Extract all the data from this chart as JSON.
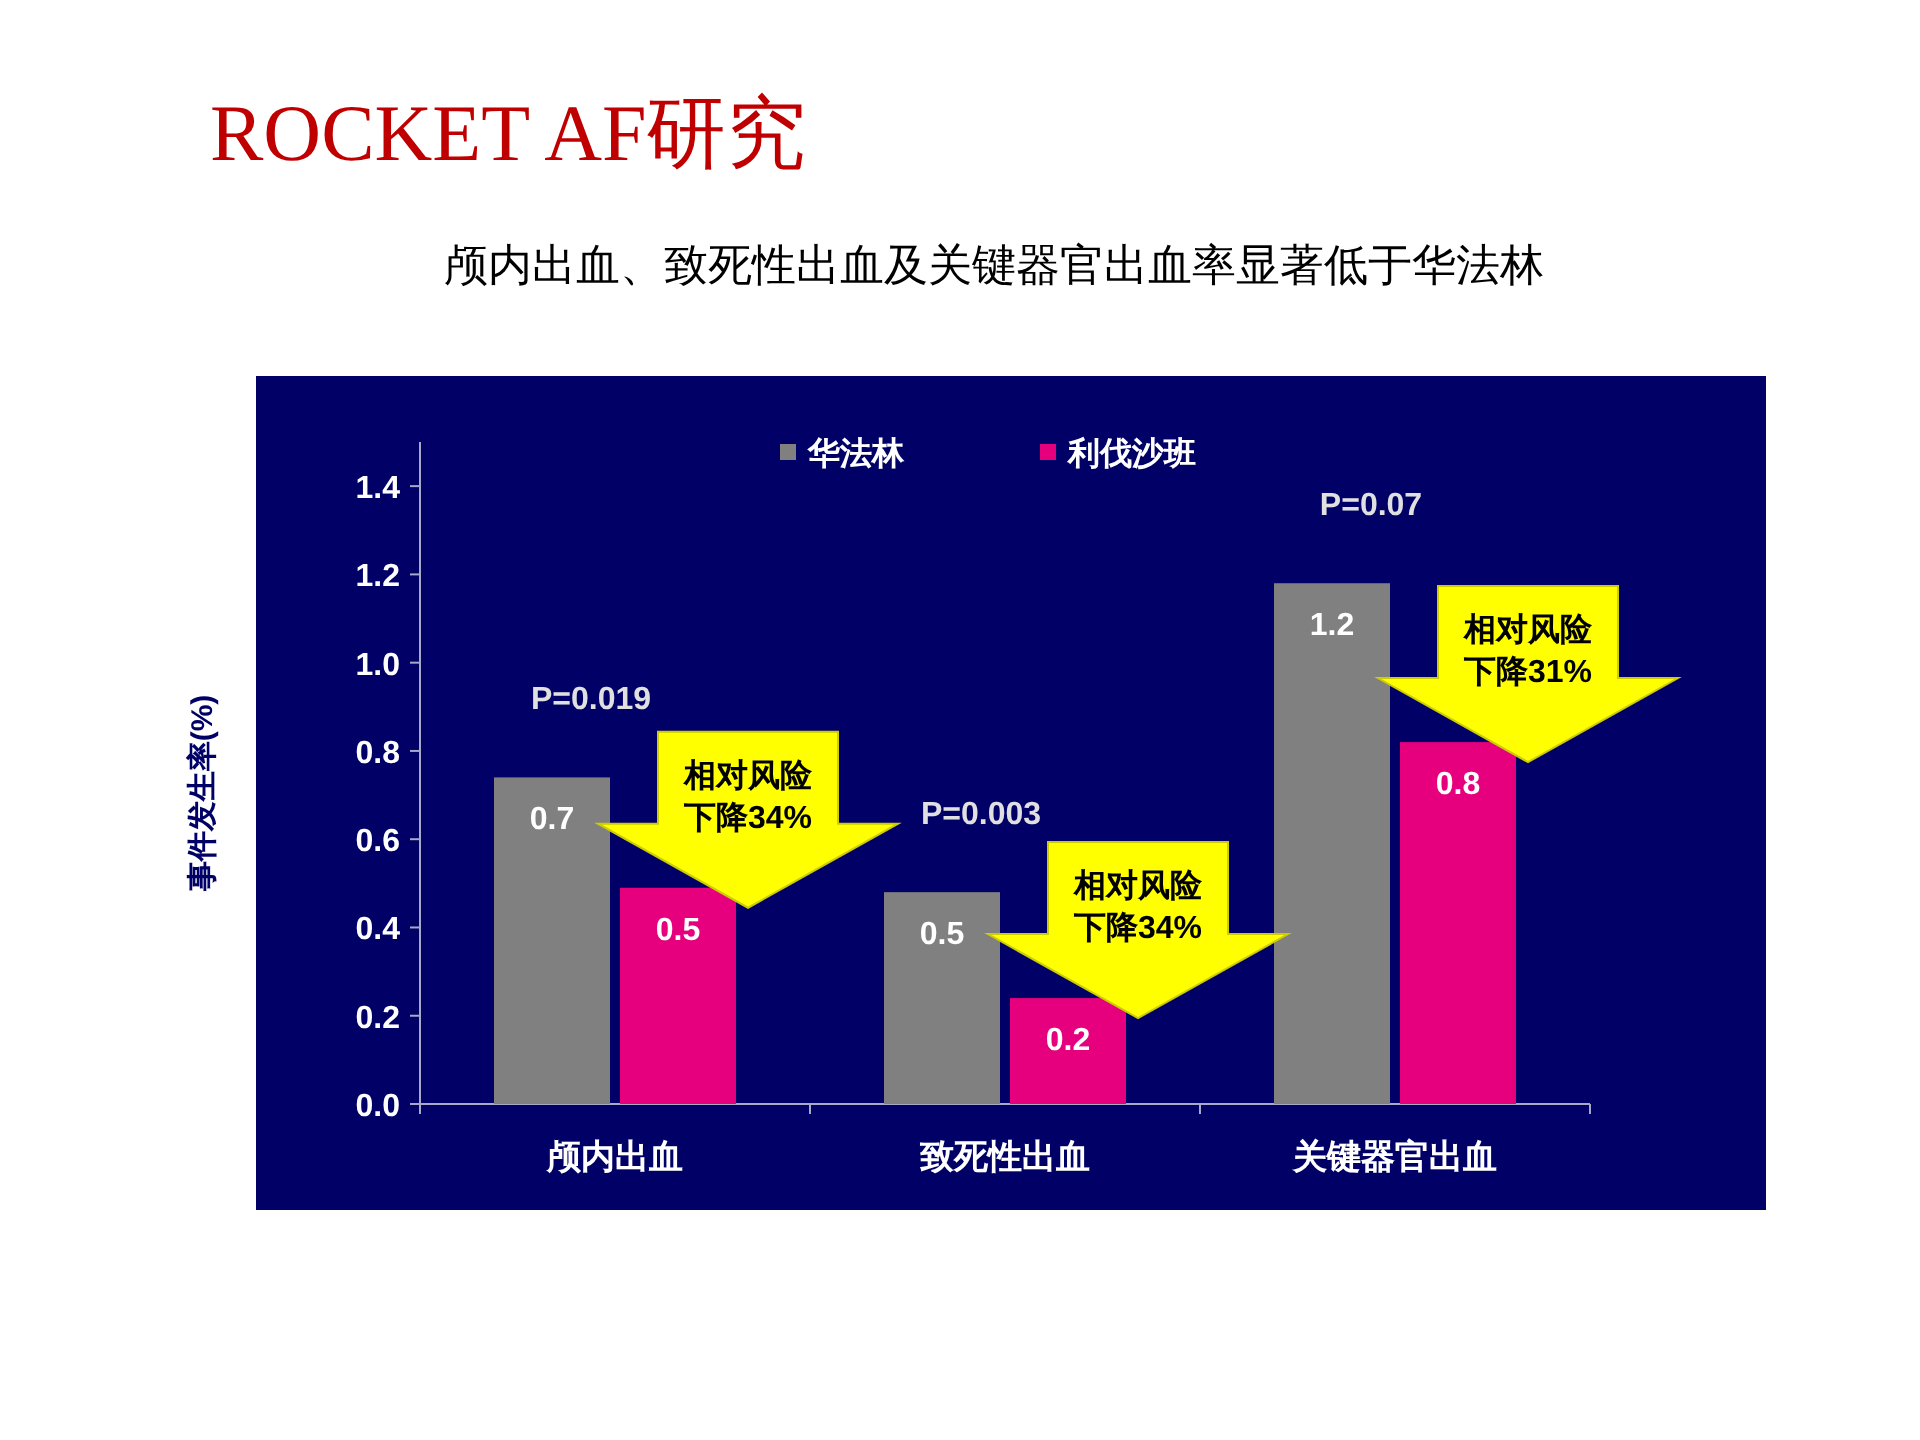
{
  "chart_data": {
    "type": "bar",
    "title": "ROCKET AF研究",
    "subtitle": "颅内出血、致死性出血及关键器官出血率显著低于华法林",
    "ylabel": "事件发生率(%)",
    "categories": [
      "颅内出血",
      "致死性出血",
      "关键器官出血"
    ],
    "series": [
      {
        "name": "华法林",
        "color": "#808080",
        "values": [
          0.74,
          0.48,
          1.18
        ],
        "value_labels": [
          "0.7",
          "0.5",
          "1.2"
        ]
      },
      {
        "name": "利伐沙班",
        "color": "#e6007e",
        "values": [
          0.49,
          0.24,
          0.82
        ],
        "value_labels": [
          "0.5",
          "0.2",
          "0.8"
        ]
      }
    ],
    "ylim": [
      0,
      1.5
    ],
    "yticks": [
      {
        "value": 0,
        "label": "0.0"
      },
      0.2,
      0.4,
      0.6,
      0.8,
      {
        "value": 1,
        "label": "1.0"
      },
      1.2,
      1.4
    ],
    "legend": "top",
    "annotations": [
      "P=0.019",
      "相对风险下降34%",
      "P=0.003",
      "相对风险下降34%",
      "P=0.07",
      "相对风险下降31%"
    ]
  }
}
